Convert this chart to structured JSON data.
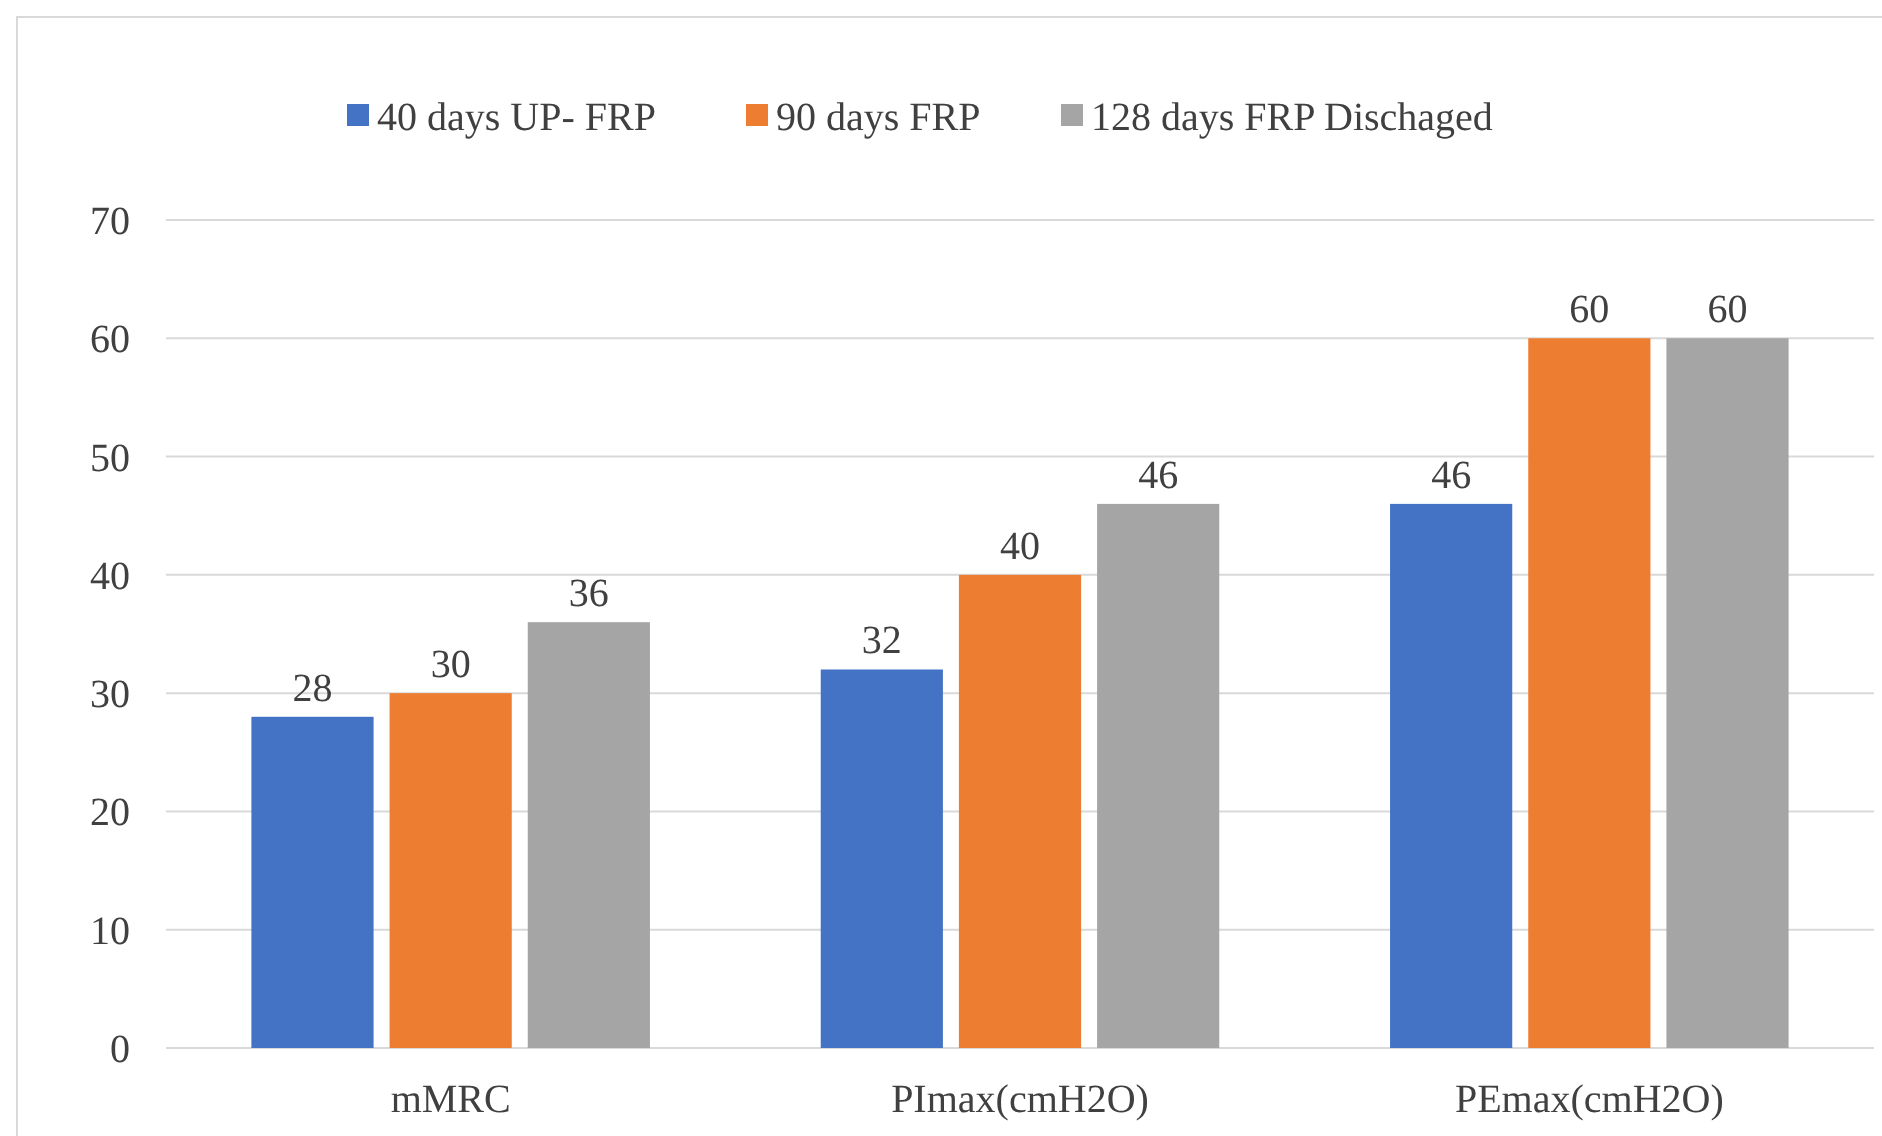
{
  "chart_data": {
    "type": "bar",
    "categories": [
      "mMRC",
      "PImax(cmH2O)",
      "PEmax(cmH2O)"
    ],
    "series": [
      {
        "name": "40 days UP- FRP",
        "color": "#4472c4",
        "values": [
          28,
          32,
          46
        ]
      },
      {
        "name": "90 days FRP",
        "color": "#ed7d31",
        "values": [
          30,
          40,
          60
        ]
      },
      {
        "name": "128 days FRP Dischaged",
        "color": "#a5a5a5",
        "values": [
          36,
          46,
          60
        ]
      }
    ],
    "ylim": [
      0,
      70
    ],
    "yticks": [
      0,
      10,
      20,
      30,
      40,
      50,
      60,
      70
    ],
    "grid": "y",
    "legend": "top",
    "data_labels": true
  }
}
